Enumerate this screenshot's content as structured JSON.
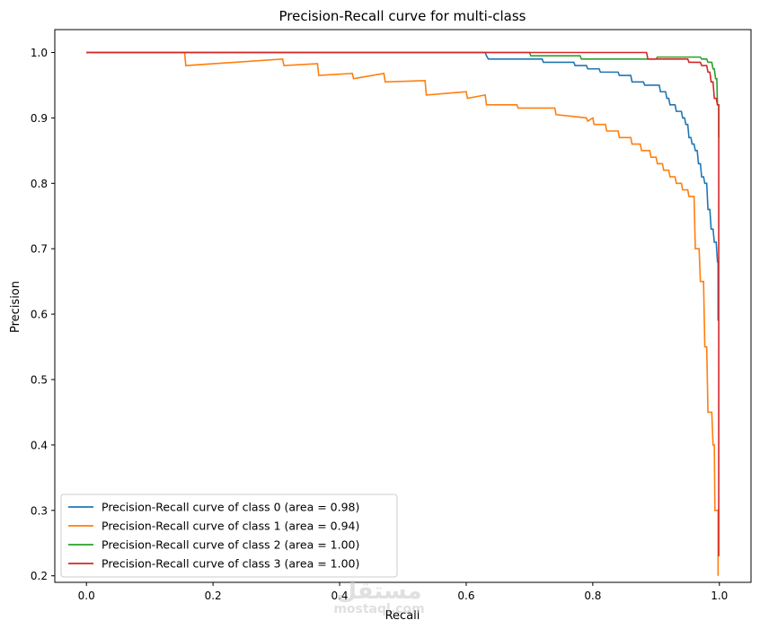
{
  "chart_data": {
    "type": "line",
    "title": "Precision-Recall curve for multi-class",
    "xlabel": "Recall",
    "ylabel": "Precision",
    "xlim": [
      -0.05,
      1.05
    ],
    "ylim": [
      0.19,
      1.035
    ],
    "xticks": [
      0.0,
      0.2,
      0.4,
      0.6,
      0.8,
      1.0
    ],
    "xtick_labels": [
      "0.0",
      "0.2",
      "0.4",
      "0.6",
      "0.8",
      "1.0"
    ],
    "yticks": [
      0.2,
      0.3,
      0.4,
      0.5,
      0.6,
      0.7,
      0.8,
      0.9,
      1.0
    ],
    "ytick_labels": [
      "0.2",
      "0.3",
      "0.4",
      "0.5",
      "0.6",
      "0.7",
      "0.8",
      "0.9",
      "1.0"
    ],
    "grid": false,
    "legend_position": "lower-left",
    "step": true,
    "series": [
      {
        "name": "Precision-Recall curve of class 0 (area = 0.98)",
        "color": "#1f77b4",
        "points": [
          [
            0.0,
            1.0
          ],
          [
            0.63,
            1.0
          ],
          [
            0.632,
            0.995
          ],
          [
            0.635,
            0.99
          ],
          [
            0.72,
            0.99
          ],
          [
            0.722,
            0.985
          ],
          [
            0.77,
            0.985
          ],
          [
            0.772,
            0.98
          ],
          [
            0.79,
            0.98
          ],
          [
            0.792,
            0.975
          ],
          [
            0.81,
            0.975
          ],
          [
            0.812,
            0.97
          ],
          [
            0.84,
            0.97
          ],
          [
            0.842,
            0.965
          ],
          [
            0.86,
            0.965
          ],
          [
            0.862,
            0.955
          ],
          [
            0.88,
            0.955
          ],
          [
            0.882,
            0.95
          ],
          [
            0.905,
            0.95
          ],
          [
            0.907,
            0.94
          ],
          [
            0.915,
            0.94
          ],
          [
            0.917,
            0.93
          ],
          [
            0.92,
            0.93
          ],
          [
            0.922,
            0.92
          ],
          [
            0.93,
            0.92
          ],
          [
            0.932,
            0.91
          ],
          [
            0.94,
            0.91
          ],
          [
            0.942,
            0.9
          ],
          [
            0.945,
            0.9
          ],
          [
            0.947,
            0.89
          ],
          [
            0.95,
            0.89
          ],
          [
            0.952,
            0.87
          ],
          [
            0.955,
            0.87
          ],
          [
            0.957,
            0.86
          ],
          [
            0.96,
            0.86
          ],
          [
            0.962,
            0.85
          ],
          [
            0.965,
            0.85
          ],
          [
            0.967,
            0.83
          ],
          [
            0.97,
            0.83
          ],
          [
            0.972,
            0.81
          ],
          [
            0.975,
            0.81
          ],
          [
            0.977,
            0.8
          ],
          [
            0.98,
            0.8
          ],
          [
            0.982,
            0.76
          ],
          [
            0.985,
            0.76
          ],
          [
            0.987,
            0.73
          ],
          [
            0.99,
            0.73
          ],
          [
            0.992,
            0.71
          ],
          [
            0.995,
            0.71
          ],
          [
            0.997,
            0.68
          ],
          [
            0.998,
            0.68
          ],
          [
            0.998,
            0.59
          ]
        ]
      },
      {
        "name": "Precision-Recall curve of class 1 (area = 0.94)",
        "color": "#ff7f0e",
        "points": [
          [
            0.0,
            1.0
          ],
          [
            0.155,
            1.0
          ],
          [
            0.157,
            0.98
          ],
          [
            0.31,
            0.99
          ],
          [
            0.312,
            0.98
          ],
          [
            0.365,
            0.983
          ],
          [
            0.367,
            0.965
          ],
          [
            0.42,
            0.968
          ],
          [
            0.422,
            0.96
          ],
          [
            0.47,
            0.968
          ],
          [
            0.472,
            0.955
          ],
          [
            0.535,
            0.957
          ],
          [
            0.537,
            0.935
          ],
          [
            0.6,
            0.94
          ],
          [
            0.602,
            0.93
          ],
          [
            0.63,
            0.935
          ],
          [
            0.632,
            0.92
          ],
          [
            0.68,
            0.92
          ],
          [
            0.682,
            0.915
          ],
          [
            0.74,
            0.915
          ],
          [
            0.742,
            0.905
          ],
          [
            0.79,
            0.9
          ],
          [
            0.792,
            0.895
          ],
          [
            0.8,
            0.9
          ],
          [
            0.802,
            0.89
          ],
          [
            0.82,
            0.89
          ],
          [
            0.822,
            0.88
          ],
          [
            0.84,
            0.88
          ],
          [
            0.842,
            0.87
          ],
          [
            0.86,
            0.87
          ],
          [
            0.862,
            0.86
          ],
          [
            0.875,
            0.86
          ],
          [
            0.877,
            0.85
          ],
          [
            0.89,
            0.85
          ],
          [
            0.892,
            0.84
          ],
          [
            0.9,
            0.84
          ],
          [
            0.902,
            0.83
          ],
          [
            0.91,
            0.83
          ],
          [
            0.912,
            0.82
          ],
          [
            0.92,
            0.82
          ],
          [
            0.922,
            0.81
          ],
          [
            0.93,
            0.81
          ],
          [
            0.932,
            0.8
          ],
          [
            0.94,
            0.8
          ],
          [
            0.942,
            0.79
          ],
          [
            0.95,
            0.79
          ],
          [
            0.952,
            0.78
          ],
          [
            0.96,
            0.78
          ],
          [
            0.962,
            0.7
          ],
          [
            0.968,
            0.7
          ],
          [
            0.97,
            0.65
          ],
          [
            0.975,
            0.65
          ],
          [
            0.977,
            0.55
          ],
          [
            0.98,
            0.55
          ],
          [
            0.982,
            0.45
          ],
          [
            0.988,
            0.45
          ],
          [
            0.99,
            0.4
          ],
          [
            0.992,
            0.4
          ],
          [
            0.993,
            0.3
          ],
          [
            0.998,
            0.3
          ],
          [
            0.998,
            0.2
          ]
        ]
      },
      {
        "name": "Precision-Recall curve of class 2 (area = 1.00)",
        "color": "#2ca02c",
        "points": [
          [
            0.0,
            1.0
          ],
          [
            0.7,
            1.0
          ],
          [
            0.702,
            0.995
          ],
          [
            0.78,
            0.995
          ],
          [
            0.782,
            0.99
          ],
          [
            0.9,
            0.99
          ],
          [
            0.902,
            0.993
          ],
          [
            0.97,
            0.993
          ],
          [
            0.972,
            0.99
          ],
          [
            0.98,
            0.99
          ],
          [
            0.982,
            0.985
          ],
          [
            0.988,
            0.985
          ],
          [
            0.99,
            0.975
          ],
          [
            0.992,
            0.975
          ],
          [
            0.994,
            0.96
          ],
          [
            0.996,
            0.96
          ],
          [
            0.997,
            0.92
          ],
          [
            0.999,
            0.92
          ],
          [
            0.999,
            0.87
          ]
        ]
      },
      {
        "name": "Precision-Recall curve of class 3 (area = 1.00)",
        "color": "#d62728",
        "points": [
          [
            0.0,
            1.0
          ],
          [
            0.885,
            1.0
          ],
          [
            0.887,
            0.99
          ],
          [
            0.92,
            0.99
          ],
          [
            0.922,
            0.99
          ],
          [
            0.95,
            0.99
          ],
          [
            0.952,
            0.985
          ],
          [
            0.97,
            0.985
          ],
          [
            0.972,
            0.98
          ],
          [
            0.98,
            0.98
          ],
          [
            0.982,
            0.97
          ],
          [
            0.985,
            0.97
          ],
          [
            0.987,
            0.955
          ],
          [
            0.99,
            0.955
          ],
          [
            0.992,
            0.93
          ],
          [
            0.995,
            0.93
          ],
          [
            0.997,
            0.92
          ],
          [
            0.999,
            0.92
          ],
          [
            0.999,
            0.23
          ]
        ]
      }
    ]
  },
  "watermark": {
    "arabic": "مستقل",
    "latin": "mostaql.com"
  }
}
